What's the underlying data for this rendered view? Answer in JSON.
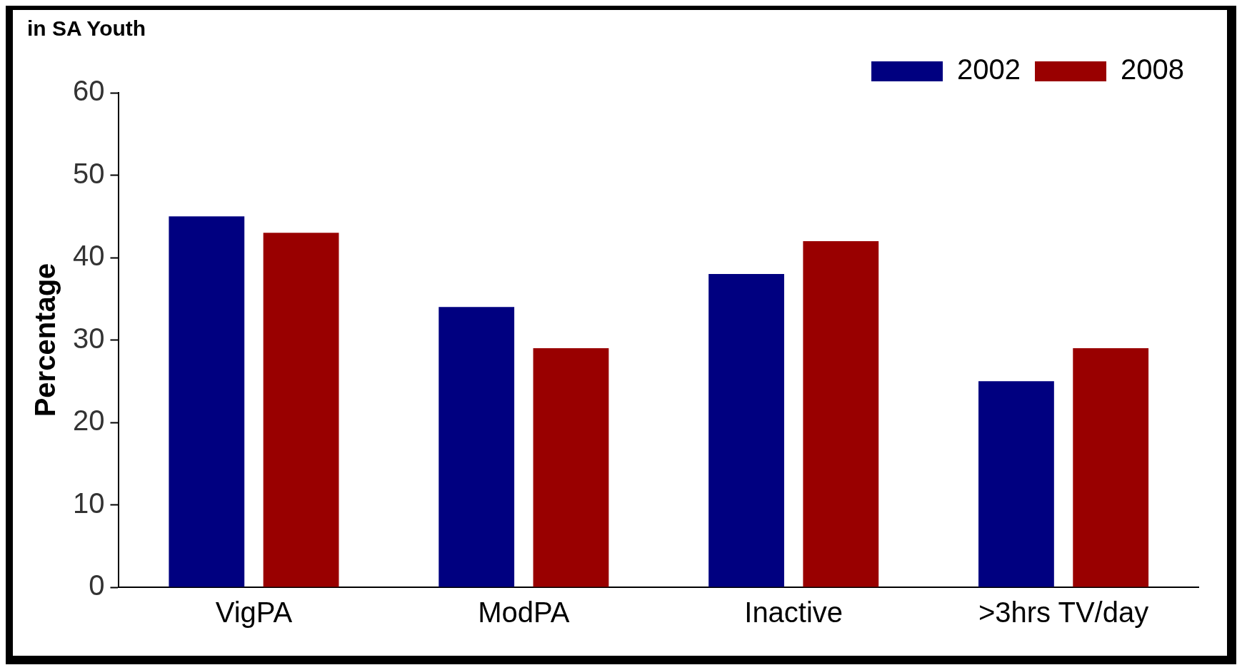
{
  "chart_data": {
    "type": "bar",
    "title": "in SA Youth",
    "ylabel": "Percentage",
    "categories": [
      "VigPA",
      "ModPA",
      "Inactive",
      ">3hrs TV/day"
    ],
    "series": [
      {
        "name": "2002",
        "color": "#000080",
        "values": [
          45,
          34,
          38,
          25
        ]
      },
      {
        "name": "2008",
        "color": "#990000",
        "values": [
          43,
          29,
          42,
          29
        ]
      }
    ],
    "ylim": [
      0,
      60
    ],
    "yticks": [
      0,
      10,
      20,
      30,
      40,
      50,
      60
    ],
    "grid": false,
    "legend": "top right"
  }
}
